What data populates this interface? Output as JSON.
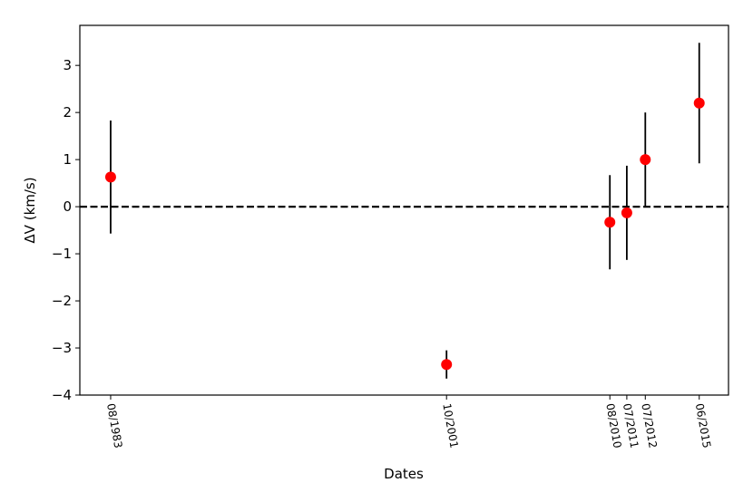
{
  "chart_data": {
    "type": "errorbar",
    "xlabel": "Dates",
    "ylabel": "ΔV (km/s)",
    "x": [
      "08/1983",
      "10/2001",
      "08/2010",
      "07/2011",
      "07/2012",
      "06/2015"
    ],
    "values": [
      0.63,
      -3.35,
      -0.33,
      -0.13,
      1.0,
      2.2
    ],
    "errors": [
      1.2,
      0.3,
      1.0,
      1.0,
      1.0,
      1.28
    ],
    "color": "#ff0000",
    "errorbar_color": "#000000",
    "xlim": [
      "12/1981",
      "01/2017"
    ],
    "xticks": [
      "08/1983",
      "10/2001",
      "08/2010",
      "07/2011",
      "07/2012",
      "06/2015"
    ],
    "ylim": [
      -4,
      3.85
    ],
    "yticks": [
      {
        "value": -4,
        "label": "−4"
      },
      {
        "value": -3,
        "label": "−3"
      },
      {
        "value": -2,
        "label": "−2"
      },
      {
        "value": -1,
        "label": "−1"
      },
      0,
      1,
      2,
      3
    ],
    "hline": 0
  }
}
